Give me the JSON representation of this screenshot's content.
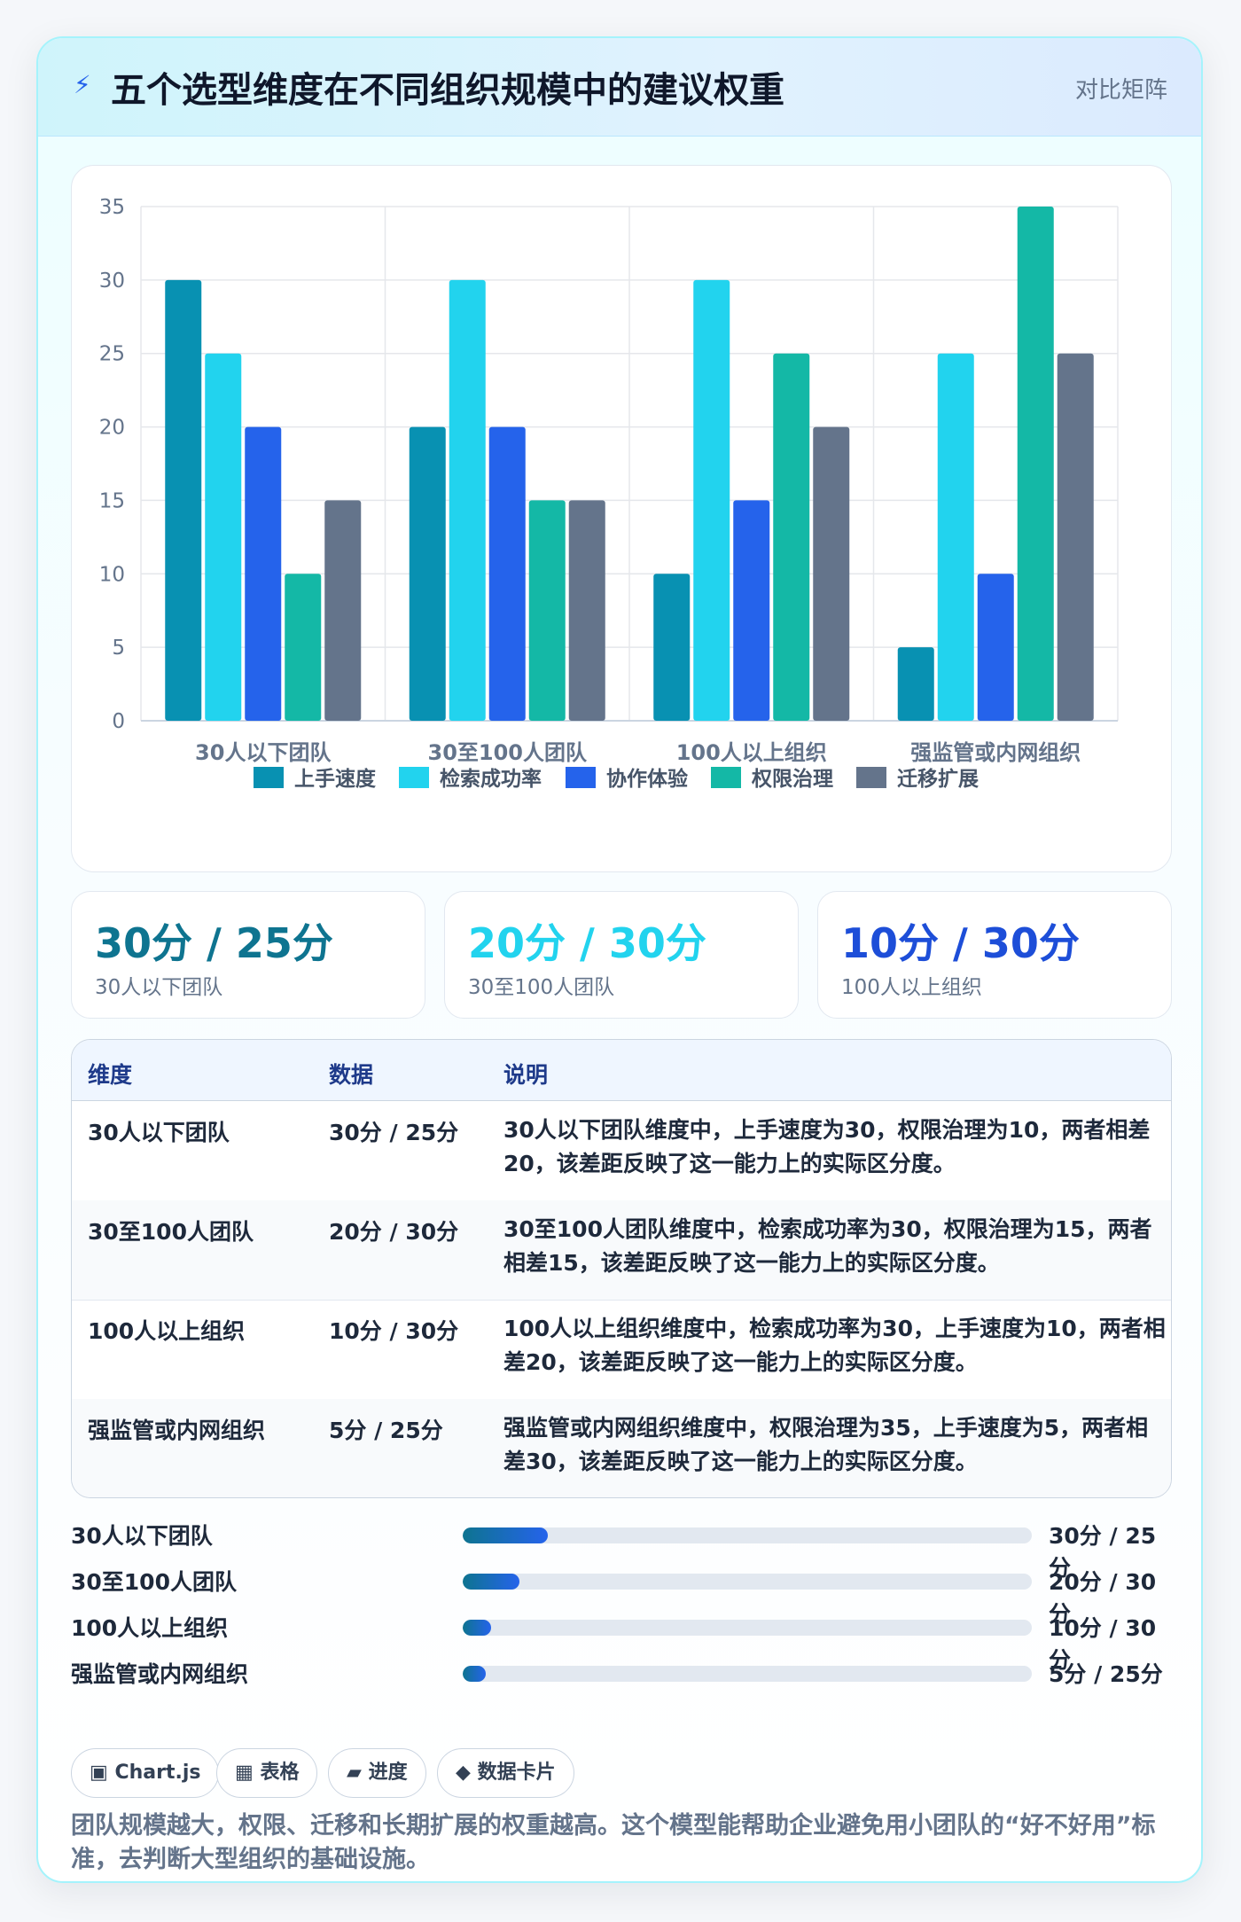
{
  "header": {
    "icon": "bolt-icon",
    "title": "五个选型维度在不同组织规模中的建议权重",
    "tag": "对比矩阵"
  },
  "chart_data": {
    "type": "bar",
    "categories": [
      "30人以下团队",
      "30至100人团队",
      "100人以上组织",
      "强监管或内网组织"
    ],
    "series": [
      {
        "name": "上手速度",
        "color": "#0891b2",
        "values": [
          30,
          20,
          10,
          5
        ]
      },
      {
        "name": "检索成功率",
        "color": "#22d3ee",
        "values": [
          25,
          30,
          30,
          25
        ]
      },
      {
        "name": "协作体验",
        "color": "#2563eb",
        "values": [
          20,
          20,
          15,
          10
        ]
      },
      {
        "name": "权限治理",
        "color": "#14b8a6",
        "values": [
          10,
          15,
          25,
          35
        ]
      },
      {
        "name": "迁移扩展",
        "color": "#64748b",
        "values": [
          15,
          15,
          20,
          25
        ]
      }
    ],
    "ylim": [
      0,
      35
    ],
    "yticks": [
      0,
      5,
      10,
      15,
      20,
      25,
      30,
      35
    ],
    "grid": true,
    "legend": "bottom"
  },
  "stats": [
    {
      "value": "30分 / 25分",
      "label": "30人以下团队",
      "color": "#0e7490"
    },
    {
      "value": "20分 / 30分",
      "label": "30至100人团队",
      "color": "#22d3ee"
    },
    {
      "value": "10分 / 30分",
      "label": "100人以上组织",
      "color": "#1d4ed8"
    }
  ],
  "table": {
    "headers": [
      "维度",
      "数据",
      "说明"
    ],
    "rows": [
      {
        "dim": "30人以下团队",
        "data": "30分 / 25分",
        "desc": "30人以下团队维度中，上手速度为30，权限治理为10，两者相差20，该差距反映了这一能力上的实际区分度。"
      },
      {
        "dim": "30至100人团队",
        "data": "20分 / 30分",
        "desc": "30至100人团队维度中，检索成功率为30，权限治理为15，两者相差15，该差距反映了这一能力上的实际区分度。"
      },
      {
        "dim": "100人以上组织",
        "data": "10分 / 30分",
        "desc": "100人以上组织维度中，检索成功率为30，上手速度为10，两者相差20，该差距反映了这一能力上的实际区分度。"
      },
      {
        "dim": "强监管或内网组织",
        "data": "5分 / 25分",
        "desc": "强监管或内网组织维度中，权限治理为35，上手速度为5，两者相差30，该差距反映了这一能力上的实际区分度。"
      }
    ]
  },
  "progress": [
    {
      "label": "30人以下团队",
      "value": "30分 / 25分",
      "fraction": 0.15
    },
    {
      "label": "30至100人团队",
      "value": "20分 / 30分",
      "fraction": 0.1
    },
    {
      "label": "100人以上组织",
      "value": "10分 / 30分",
      "fraction": 0.05
    },
    {
      "label": "强监管或内网组织",
      "value": "5分 / 25分",
      "fraction": 0.04
    }
  ],
  "chips": [
    {
      "label": "▣ Chart.js"
    },
    {
      "label": "▦ 表格"
    },
    {
      "label": "▰ 进度"
    },
    {
      "label": "◆ 数据卡片"
    }
  ],
  "footnote": "团队规模越大，权限、迁移和长期扩展的权重越高。这个模型能帮助企业避免用小团队的“好不好用”标准，去判断大型组织的基础设施。"
}
